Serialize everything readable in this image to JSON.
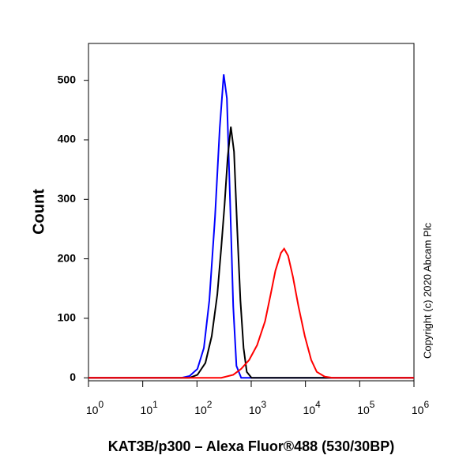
{
  "chart_data": {
    "type": "line",
    "xlabel": "KAT3B/p300 – Alexa Fluor®488 (530/30BP)",
    "ylabel": "Count",
    "annotation": "Copyright (c) 2020 Abcam Plc",
    "xscale": "log",
    "xlim": [
      1,
      1000000
    ],
    "ylim": [
      -5,
      562
    ],
    "xticks": [
      {
        "value": 1,
        "label": "10",
        "sup": "0"
      },
      {
        "value": 10,
        "label": "10",
        "sup": "1"
      },
      {
        "value": 100,
        "label": "10",
        "sup": "2"
      },
      {
        "value": 1000,
        "label": "10",
        "sup": "3"
      },
      {
        "value": 10000,
        "label": "10",
        "sup": "4"
      },
      {
        "value": 100000,
        "label": "10",
        "sup": "5"
      },
      {
        "value": 1000000,
        "label": "10",
        "sup": "6"
      }
    ],
    "yticks": [
      0,
      100,
      200,
      300,
      400,
      500
    ],
    "series": [
      {
        "color": "#0000ff",
        "x": [
          1,
          52,
          73,
          102,
          134,
          169,
          215,
          263,
          311,
          356,
          407,
          466,
          534,
          653,
          1000000
        ],
        "values": [
          0,
          0,
          3,
          15,
          50,
          130,
          270,
          420,
          510,
          470,
          300,
          120,
          20,
          0,
          0
        ]
      },
      {
        "color": "#000000",
        "x": [
          1,
          73,
          102,
          143,
          187,
          237,
          281,
          322,
          368,
          421,
          482,
          552,
          632,
          723,
          828,
          1014,
          1000000
        ],
        "values": [
          0,
          0,
          5,
          25,
          70,
          140,
          220,
          290,
          370,
          422,
          380,
          250,
          130,
          50,
          10,
          0,
          0
        ]
      },
      {
        "color": "#ff0000",
        "x": [
          1,
          281,
          466,
          653,
          916,
          1285,
          1799,
          2280,
          2792,
          3535,
          4045,
          4790,
          5865,
          7430,
          9730,
          12760,
          16150,
          22650,
          31700,
          1000000
        ],
        "values": [
          0,
          0,
          5,
          15,
          30,
          55,
          95,
          140,
          180,
          210,
          217,
          205,
          170,
          120,
          70,
          30,
          10,
          2,
          0,
          0
        ]
      }
    ]
  }
}
